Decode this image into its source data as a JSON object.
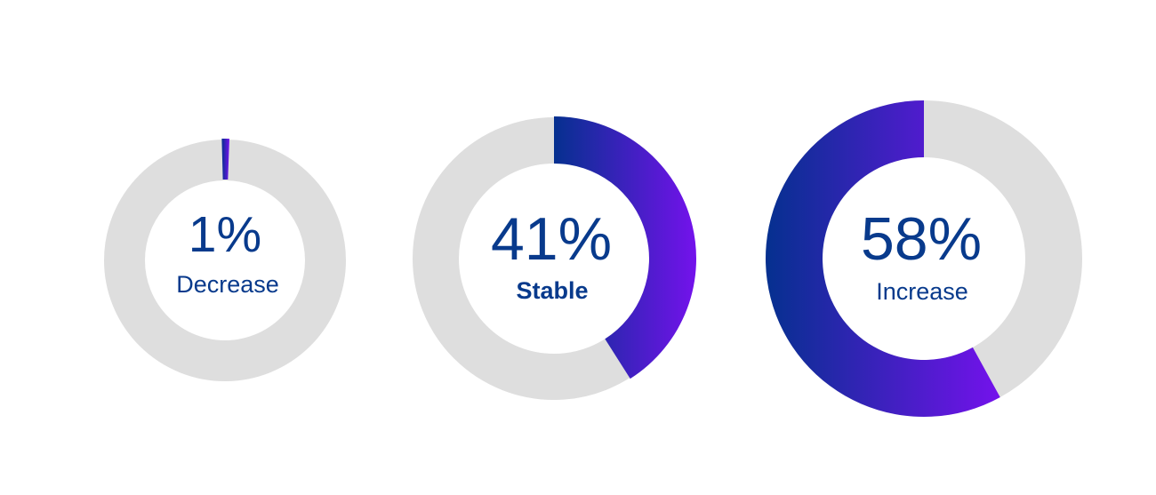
{
  "colors": {
    "track": "#dedede",
    "text": "#083a8c",
    "gradient_start": "#05308f",
    "gradient_end": "#7412ec"
  },
  "chart_data": {
    "type": "pie",
    "variant": "donut",
    "title": "",
    "items": [
      {
        "label": "Decrease",
        "value": 1,
        "value_label": "1%",
        "text_color": "#083a8c"
      },
      {
        "label": "Stable",
        "value": 41,
        "value_label": "41%",
        "text_color": "#083a8c"
      },
      {
        "label": "Increase",
        "value": 58,
        "value_label": "58%",
        "text_color": "#083a8c"
      }
    ]
  }
}
